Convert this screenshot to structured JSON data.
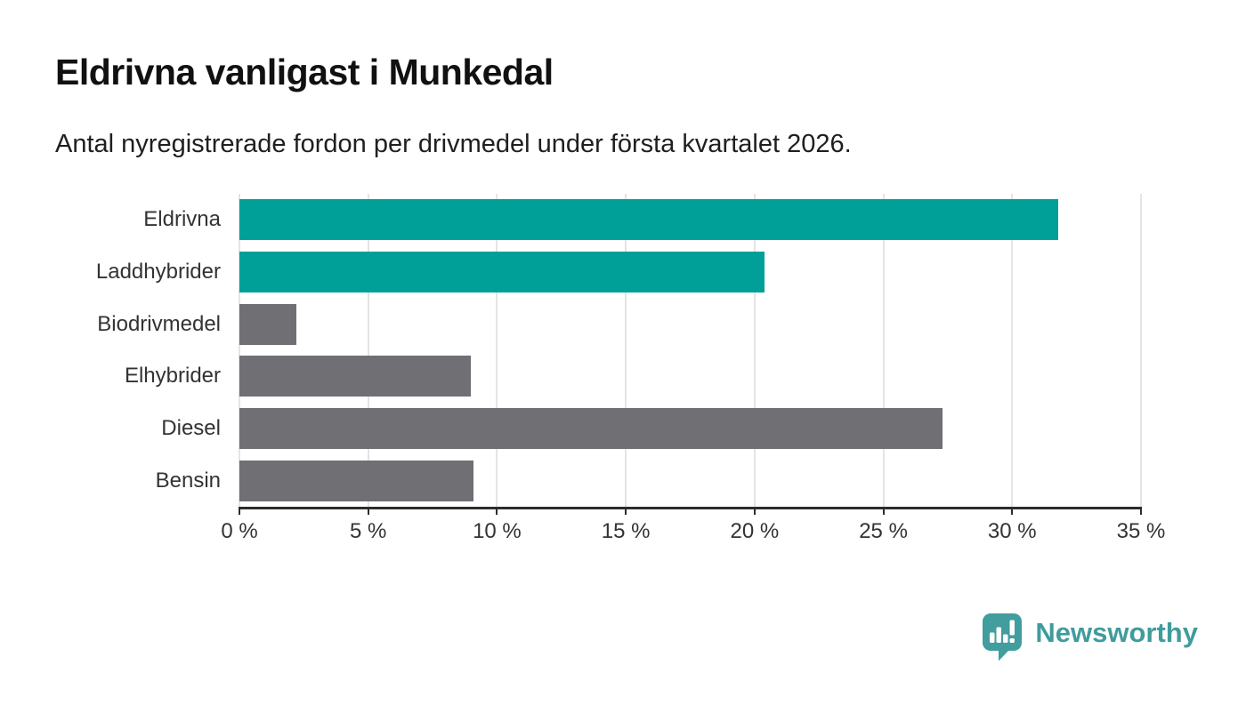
{
  "header": {
    "title": "Eldrivna vanligast i Munkedal",
    "subtitle": "Antal nyregistrerade fordon per drivmedel under första kvartalet 2026."
  },
  "chart_data": {
    "type": "bar",
    "orientation": "horizontal",
    "title": "Eldrivna vanligast i Munkedal",
    "subtitle": "Antal nyregistrerade fordon per drivmedel under första kvartalet 2026.",
    "categories": [
      "Eldrivna",
      "Laddhybrider",
      "Biodrivmedel",
      "Elhybrider",
      "Diesel",
      "Bensin"
    ],
    "values": [
      31.8,
      20.4,
      2.2,
      9.0,
      27.3,
      9.1
    ],
    "unit": "%",
    "bar_colors": [
      "#00a099",
      "#00a099",
      "#6f6f74",
      "#6f6f74",
      "#6f6f74",
      "#6f6f74"
    ],
    "highlight_color": "#00a099",
    "default_color": "#6f6f74",
    "xlabel": "",
    "ylabel": "",
    "xlim": [
      0,
      35
    ],
    "xticks": [
      0,
      5,
      10,
      15,
      20,
      25,
      30,
      35
    ],
    "xtick_labels": [
      "0 %",
      "5 %",
      "10 %",
      "15 %",
      "20 %",
      "25 %",
      "30 %",
      "35 %"
    ],
    "grid": true,
    "legend": false
  },
  "branding": {
    "logo_text": "Newsworthy",
    "logo_color": "#3f9c9d",
    "logo_icon": "newsworthy-bubble-barchart-icon"
  }
}
